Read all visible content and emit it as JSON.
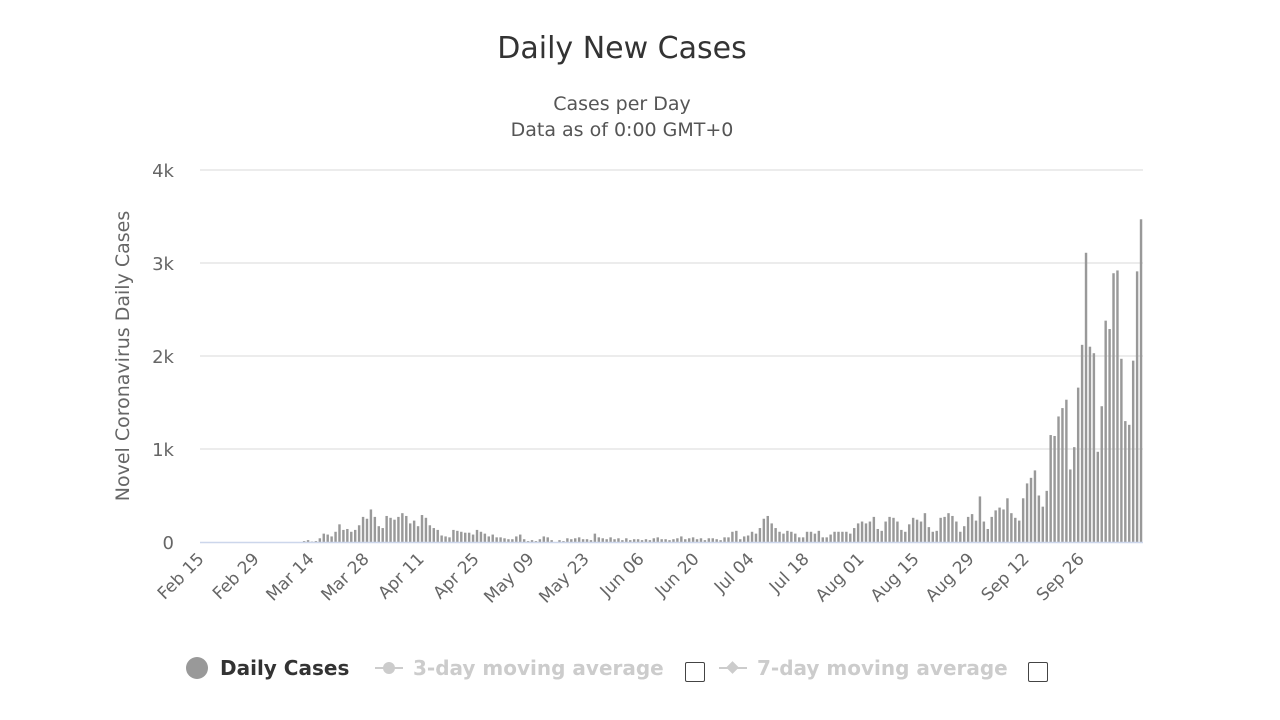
{
  "chart_data": {
    "type": "bar",
    "title": "Daily New Cases",
    "subtitle_lines": [
      "Cases per Day",
      "Data as of 0:00 GMT+0"
    ],
    "ylabel": "Novel Coronavirus Daily Cases",
    "xlabel": "",
    "ylim": [
      0,
      4000
    ],
    "yticks": [
      0,
      1000,
      2000,
      3000,
      4000
    ],
    "ytick_labels": [
      "0",
      "1k",
      "2k",
      "3k",
      "4k"
    ],
    "xtick_labels": [
      "Feb 15",
      "Feb 29",
      "Mar 14",
      "Mar 28",
      "Apr 11",
      "Apr 25",
      "May 09",
      "May 23",
      "Jun 06",
      "Jun 20",
      "Jul 04",
      "Jul 18",
      "Aug 01",
      "Aug 15",
      "Aug 29",
      "Sep 12",
      "Sep 26"
    ],
    "start_date": "Feb 15",
    "grid": true,
    "series": [
      {
        "name": "Daily Cases",
        "color": "#999999",
        "values": [
          0,
          0,
          0,
          0,
          0,
          0,
          0,
          0,
          0,
          0,
          0,
          0,
          0,
          0,
          0,
          0,
          0,
          0,
          0,
          0,
          0,
          0,
          0,
          0,
          0,
          0,
          10,
          20,
          5,
          10,
          40,
          90,
          80,
          60,
          110,
          190,
          130,
          140,
          110,
          130,
          180,
          270,
          250,
          350,
          270,
          170,
          150,
          280,
          260,
          240,
          270,
          310,
          280,
          200,
          230,
          170,
          290,
          260,
          180,
          150,
          130,
          70,
          60,
          50,
          130,
          120,
          110,
          100,
          100,
          80,
          130,
          110,
          90,
          60,
          80,
          50,
          50,
          40,
          30,
          30,
          60,
          80,
          30,
          10,
          20,
          10,
          30,
          60,
          50,
          20,
          0,
          20,
          10,
          40,
          30,
          40,
          50,
          30,
          30,
          20,
          90,
          50,
          40,
          30,
          50,
          30,
          40,
          20,
          40,
          20,
          30,
          30,
          20,
          30,
          20,
          40,
          50,
          30,
          30,
          20,
          30,
          40,
          60,
          30,
          40,
          50,
          30,
          40,
          20,
          40,
          40,
          30,
          20,
          50,
          50,
          110,
          120,
          30,
          60,
          70,
          110,
          90,
          150,
          250,
          280,
          200,
          150,
          110,
          90,
          120,
          110,
          90,
          50,
          50,
          110,
          110,
          90,
          120,
          50,
          50,
          80,
          110,
          110,
          110,
          110,
          90,
          150,
          200,
          220,
          200,
          220,
          270,
          140,
          120,
          220,
          270,
          260,
          220,
          130,
          110,
          190,
          260,
          240,
          220,
          310,
          160,
          110,
          120,
          260,
          270,
          310,
          280,
          220,
          110,
          170,
          270,
          300,
          230,
          490,
          220,
          140,
          270,
          340,
          370,
          350,
          470,
          310,
          260,
          230,
          470,
          630,
          690,
          770,
          500,
          380,
          550,
          1150,
          1140,
          1350,
          1440,
          1530,
          780,
          1020,
          1660,
          2120,
          3110,
          2100,
          2030,
          970,
          1460,
          2380,
          2290,
          2890,
          2920,
          1970,
          1300,
          1260,
          1950,
          2910,
          3470
        ]
      }
    ],
    "legend": [
      {
        "label": "Daily Cases",
        "active": true,
        "color": "#999999"
      },
      {
        "label": "3-day moving average",
        "active": false,
        "color": "#cccccc"
      },
      {
        "label": "7-day moving average",
        "active": false,
        "color": "#cccccc"
      }
    ]
  }
}
